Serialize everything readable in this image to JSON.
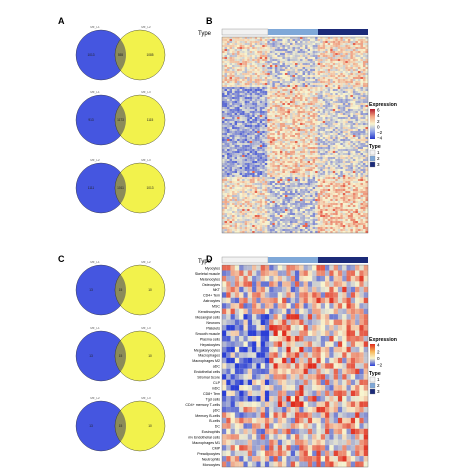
{
  "panels": {
    "A": "A",
    "B": "B",
    "C": "C",
    "D": "D"
  },
  "venn_A": [
    {
      "left_label": "Mfr_L1",
      "right_label": "Mfr_L2",
      "left_only": "1013",
      "overlap": "555",
      "right_only": "1085"
    },
    {
      "left_label": "Mfr_L1",
      "right_label": "Mfr_L3",
      "left_only": "913",
      "overlap": "1173",
      "right_only": "1115"
    },
    {
      "left_label": "Mfr_L2",
      "right_label": "Mfr_L3",
      "left_only": "1111",
      "overlap": "1011",
      "right_only": "1013"
    }
  ],
  "venn_C": [
    {
      "left_label": "Mfr_L1",
      "right_label": "Mfr_L2",
      "left_only": "13",
      "overlap": "15",
      "right_only": "10"
    },
    {
      "left_label": "Mfr_L1",
      "right_label": "Mfr_L3",
      "left_only": "13",
      "overlap": "15",
      "right_only": "10"
    },
    {
      "left_label": "Mfr_L2",
      "right_label": "Mfr_L3",
      "left_only": "13",
      "overlap": "15",
      "right_only": "10"
    }
  ],
  "heatmap_B": {
    "type_label": "Type",
    "legend": {
      "expression_title": "Expression",
      "expression_ticks": [
        "6",
        "4",
        "2",
        "0",
        "−2",
        "−4"
      ],
      "type_title": "Type",
      "type_ticks": [
        "1",
        "2",
        "3"
      ]
    }
  },
  "heatmap_D": {
    "type_label": "Type",
    "row_labels": [
      "Myocytes",
      "Skeletal muscle",
      "Melanocytes",
      "Osteocytes",
      "NKT",
      "CD4+ Tem",
      "Astrocytes",
      "MSC",
      "Keratinocytes",
      "Mesangial cells",
      "Neurons",
      "Platelets",
      "Smooth muscle",
      "Plasma cells",
      "Hepatocytes",
      "Megakaryocytes",
      "Macrophages",
      "Macrophages M2",
      "aDC",
      "Endothelial cells",
      "Stromal Score",
      "CLP",
      "mDC",
      "CD8+ Tem",
      "Tgd cells",
      "CD4+ memory T-cells",
      "pDC",
      "Memory B-cells",
      "B-cells",
      "DC",
      "Eosinophils",
      "mv Endothelial cells",
      "Macrophages M1",
      "CMP",
      "Preadipocytes",
      "Neutrophils",
      "Monocytes"
    ],
    "legend": {
      "expression_title": "Expression",
      "expression_ticks": [
        "4",
        "2",
        "0",
        "−2"
      ],
      "type_title": "Type",
      "type_ticks": [
        "1",
        "2",
        "3"
      ]
    }
  },
  "colors": {
    "venn_left": "#4556e0",
    "venn_right": "#f2f24c",
    "venn_overlap": "#8b8b5a",
    "type1": "#f2f2f2",
    "type2": "#7fa8d8",
    "type3": "#1b2a78",
    "low": "#2b3fd6",
    "mid": "#f8f5cf",
    "high": "#e02a1c"
  }
}
